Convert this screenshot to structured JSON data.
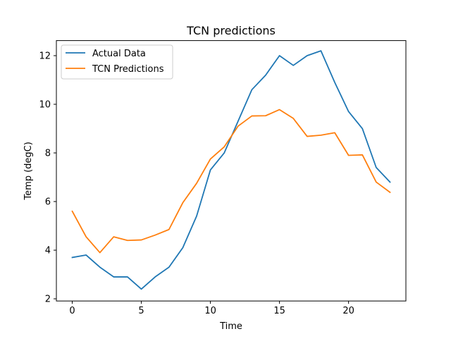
{
  "chart_data": {
    "type": "line",
    "title": "TCN predictions",
    "xlabel": "Time",
    "ylabel": "Temp (degC)",
    "xlim": [
      -1.15,
      24.15
    ],
    "ylim": [
      1.91,
      12.62
    ],
    "xticks": [
      0,
      5,
      10,
      15,
      20
    ],
    "yticks": [
      2,
      4,
      6,
      8,
      10,
      12
    ],
    "grid": false,
    "legend_position": "top-left",
    "x": [
      0,
      1,
      2,
      3,
      4,
      5,
      6,
      7,
      8,
      9,
      10,
      11,
      12,
      13,
      14,
      15,
      16,
      17,
      18,
      19,
      20,
      21,
      22,
      23
    ],
    "series": [
      {
        "name": "Actual Data",
        "color": "#1f77b4",
        "values": [
          3.7,
          3.8,
          3.3,
          2.9,
          2.9,
          2.4,
          2.9,
          3.3,
          4.1,
          5.4,
          7.3,
          8.0,
          9.3,
          10.6,
          11.2,
          12.0,
          11.6,
          12.0,
          12.2,
          10.9,
          9.7,
          9.0,
          7.4,
          6.8
        ]
      },
      {
        "name": "TCN Predictions",
        "color": "#ff7f0e",
        "values": [
          5.6,
          4.55,
          3.9,
          4.55,
          4.4,
          4.42,
          4.62,
          4.85,
          5.95,
          6.75,
          7.75,
          8.25,
          9.1,
          9.52,
          9.53,
          9.78,
          9.42,
          8.68,
          8.73,
          8.83,
          7.9,
          7.92,
          6.8,
          6.38
        ]
      }
    ]
  }
}
